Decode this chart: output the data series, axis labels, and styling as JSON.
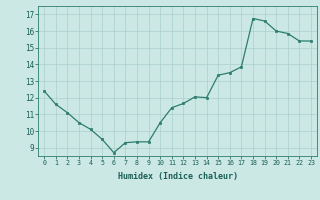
{
  "x": [
    0,
    1,
    2,
    3,
    4,
    5,
    6,
    7,
    8,
    9,
    10,
    11,
    12,
    13,
    14,
    15,
    16,
    17,
    18,
    19,
    20,
    21,
    22,
    23
  ],
  "y": [
    12.4,
    11.6,
    11.1,
    10.5,
    10.1,
    9.5,
    8.7,
    9.3,
    9.35,
    9.35,
    10.5,
    11.4,
    11.65,
    12.05,
    12.0,
    13.35,
    13.5,
    13.85,
    16.75,
    16.6,
    16.0,
    15.85,
    15.4,
    15.4
  ],
  "xlabel": "Humidex (Indice chaleur)",
  "ylim": [
    8.5,
    17.5
  ],
  "xlim": [
    -0.5,
    23.5
  ],
  "yticks": [
    9,
    10,
    11,
    12,
    13,
    14,
    15,
    16,
    17
  ],
  "xtick_labels": [
    "0",
    "1",
    "2",
    "3",
    "4",
    "5",
    "6",
    "7",
    "8",
    "9",
    "10",
    "11",
    "12",
    "13",
    "14",
    "15",
    "16",
    "17",
    "18",
    "19",
    "20",
    "21",
    "22",
    "23"
  ],
  "line_color": "#2d7d6f",
  "marker_color": "#2d7d6f",
  "bg_color": "#cce8e5",
  "grid_color": "#aad0cc",
  "axis_color": "#2d7d6f",
  "font_color": "#1a5f56"
}
